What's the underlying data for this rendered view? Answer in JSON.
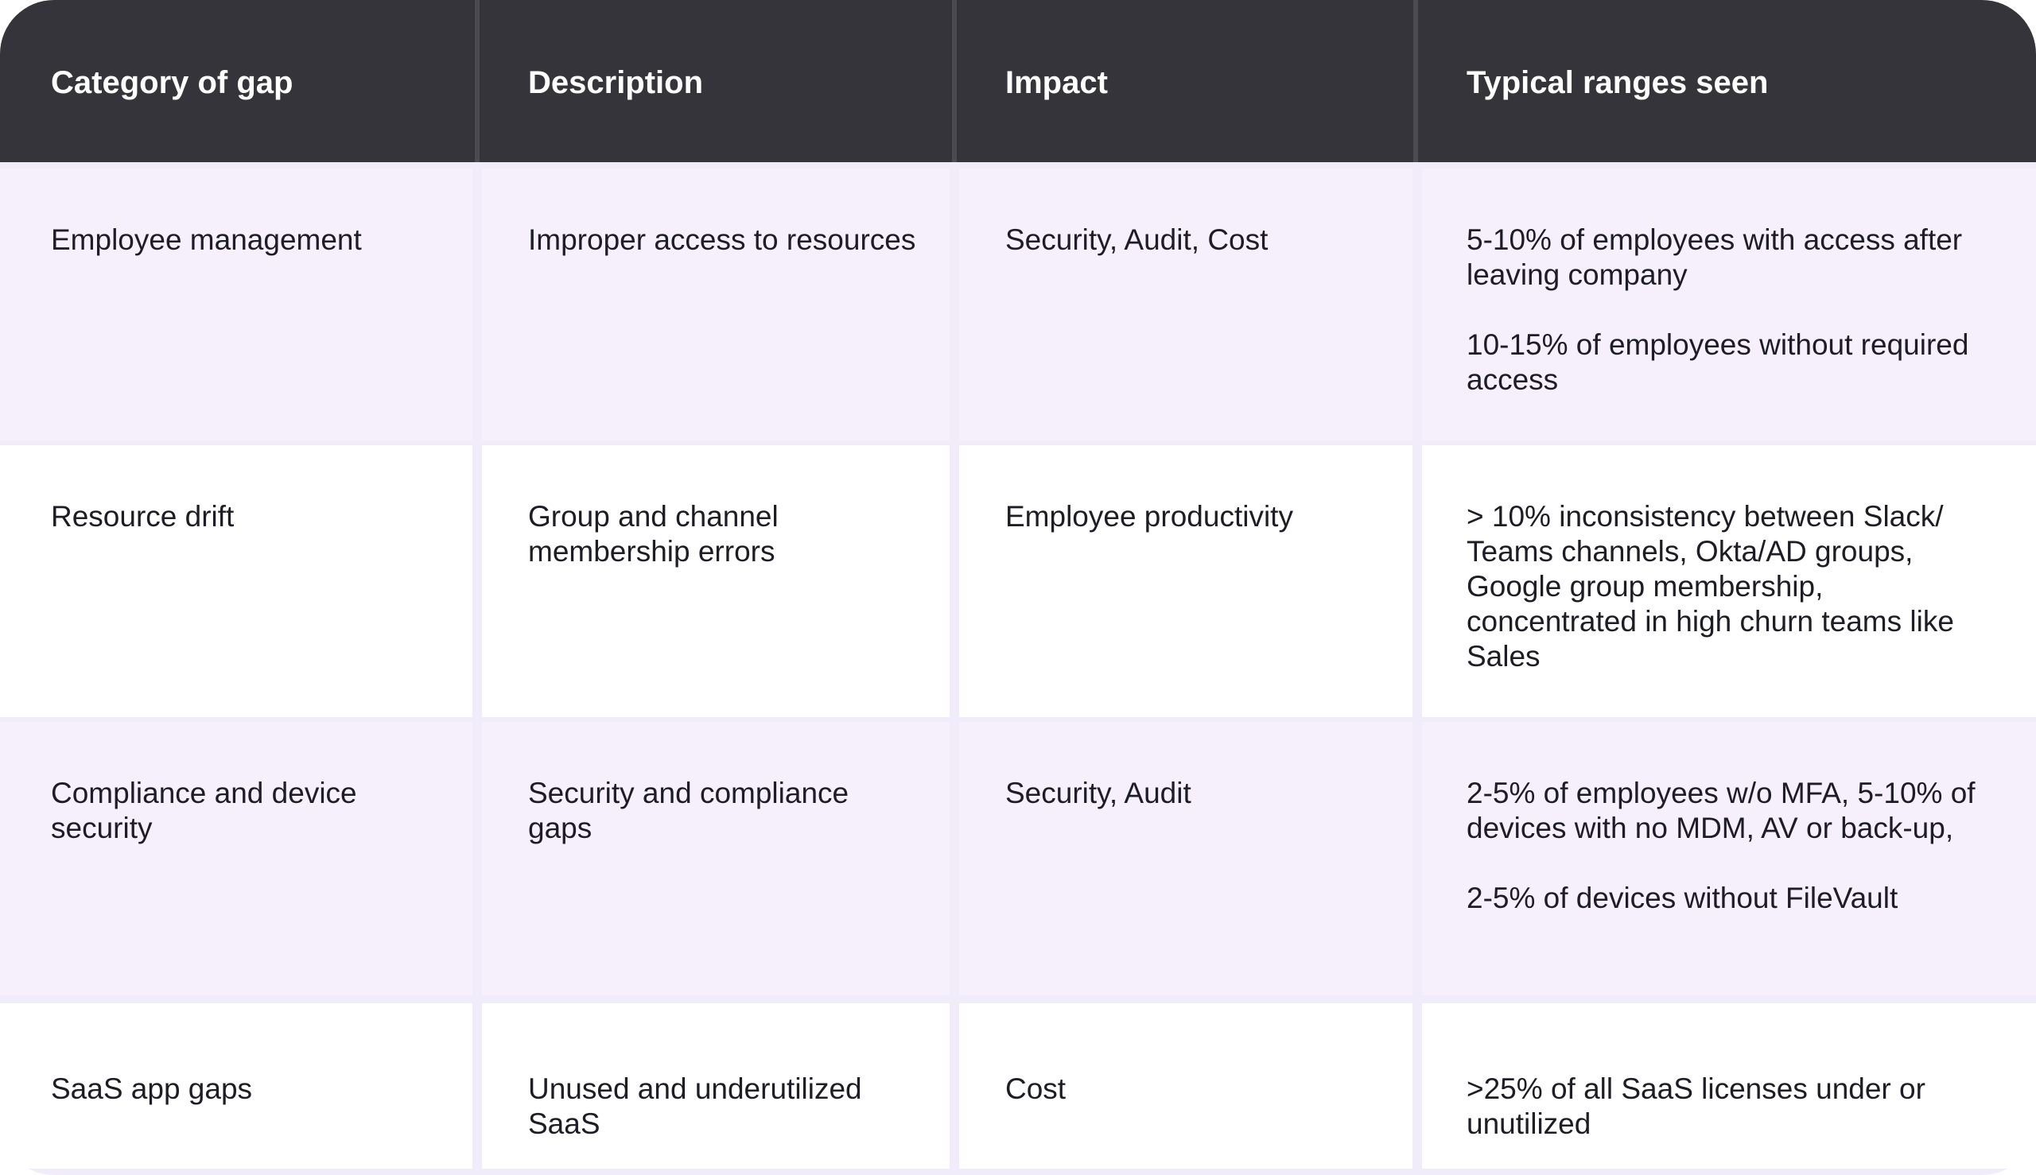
{
  "table": {
    "headers": [
      "Category of gap",
      "Description",
      "Impact",
      "Typical ranges seen"
    ],
    "rows": [
      {
        "category": "Employee management",
        "description": "Improper access to resources",
        "impact": "Security, Audit, Cost",
        "ranges": [
          "5-10% of employees with access after leaving company",
          "10-15% of employees without required access"
        ]
      },
      {
        "category": "Resource drift",
        "description": "Group and channel membership errors",
        "impact": "Employee productivity",
        "ranges": [
          "> 10% inconsistency between Slack/ Teams channels, Okta/AD groups, Google group membership, concentrated in high churn teams like Sales"
        ]
      },
      {
        "category": "Compliance and device security",
        "description": "Security and compliance gaps",
        "impact": "Security, Audit",
        "ranges": [
          "2-5% of employees w/o MFA, 5-10% of devices with no MDM, AV or back-up,",
          "2-5% of devices without FileVault"
        ]
      },
      {
        "category": "SaaS app gaps",
        "description": "Unused and underutilized SaaS",
        "impact": "Cost",
        "ranges": [
          ">25% of all SaaS licenses under or unutilized"
        ]
      }
    ]
  }
}
